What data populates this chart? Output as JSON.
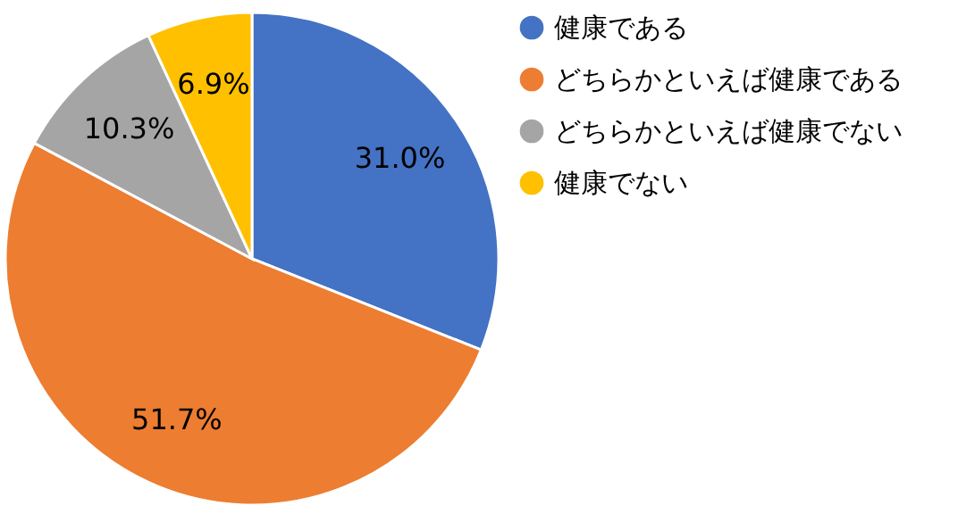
{
  "chart_data": {
    "type": "pie",
    "categories": [
      "健康である",
      "どちらかといえば健康である",
      "どちらかといえば健康でない",
      "健康でない"
    ],
    "values": [
      31.0,
      51.7,
      10.3,
      6.9
    ],
    "colors": [
      "#4472c4",
      "#ed7d31",
      "#a5a5a5",
      "#ffc000"
    ],
    "value_labels": [
      "31.0%",
      "51.7%",
      "10.3%",
      "6.9%"
    ],
    "legend": "right"
  }
}
